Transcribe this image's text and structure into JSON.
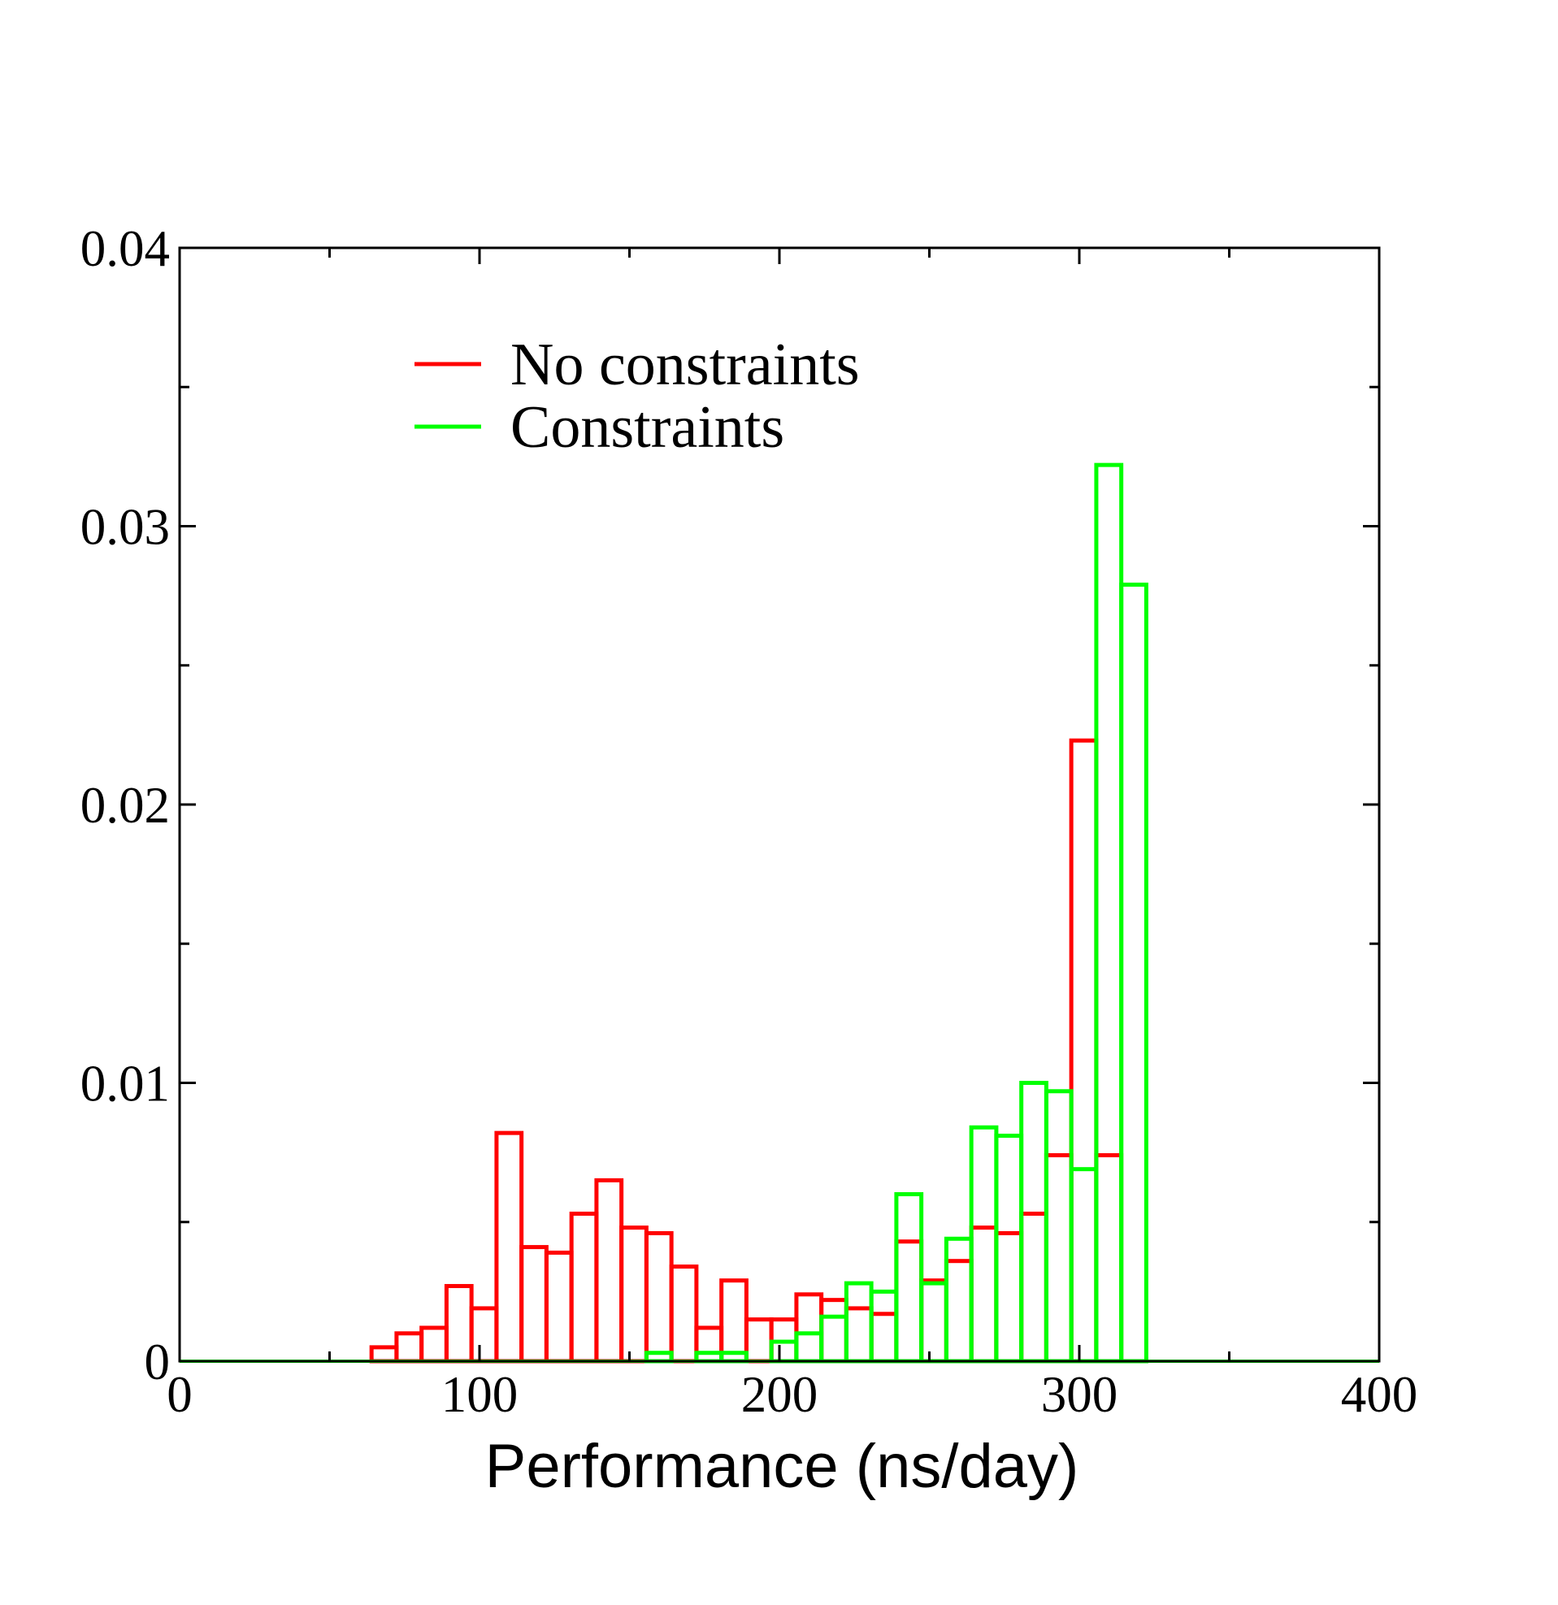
{
  "chart_data": {
    "type": "bar",
    "title": "",
    "xlabel": "Performance (ns/day)",
    "ylabel": "",
    "xlim": [
      0,
      400
    ],
    "ylim": [
      0,
      0.04
    ],
    "x_ticks": [
      "0",
      "100",
      "200",
      "300",
      "400"
    ],
    "y_ticks": [
      "0",
      "0.01",
      "0.02",
      "0.03",
      "0.04"
    ],
    "grid": false,
    "legend_placement": "top-left",
    "bin_width": 8.33,
    "series": [
      {
        "name": "No constraints",
        "color": "#ff0000",
        "bins": [
          {
            "x": 64,
            "y": 0.0005
          },
          {
            "x": 72.33,
            "y": 0.001
          },
          {
            "x": 80.67,
            "y": 0.0012
          },
          {
            "x": 89,
            "y": 0.0027
          },
          {
            "x": 97.33,
            "y": 0.0019
          },
          {
            "x": 105.67,
            "y": 0.0082
          },
          {
            "x": 114,
            "y": 0.0041
          },
          {
            "x": 122.33,
            "y": 0.0039
          },
          {
            "x": 130.67,
            "y": 0.0053
          },
          {
            "x": 139,
            "y": 0.0065
          },
          {
            "x": 147.33,
            "y": 0.0048
          },
          {
            "x": 155.67,
            "y": 0.0046
          },
          {
            "x": 164,
            "y": 0.0034
          },
          {
            "x": 172.33,
            "y": 0.0012
          },
          {
            "x": 180.67,
            "y": 0.0029
          },
          {
            "x": 189,
            "y": 0.0015
          },
          {
            "x": 197.33,
            "y": 0.0015
          },
          {
            "x": 205.67,
            "y": 0.0024
          },
          {
            "x": 214,
            "y": 0.0022
          },
          {
            "x": 222.33,
            "y": 0.0019
          },
          {
            "x": 230.67,
            "y": 0.0017
          },
          {
            "x": 239,
            "y": 0.0043
          },
          {
            "x": 247.33,
            "y": 0.0029
          },
          {
            "x": 255.67,
            "y": 0.0036
          },
          {
            "x": 264,
            "y": 0.0048
          },
          {
            "x": 272.33,
            "y": 0.0046
          },
          {
            "x": 280.67,
            "y": 0.0053
          },
          {
            "x": 289,
            "y": 0.0074
          },
          {
            "x": 297.33,
            "y": 0.0223
          },
          {
            "x": 305.67,
            "y": 0.0074
          }
        ]
      },
      {
        "name": "Constraints",
        "color": "#00ff00",
        "bins": [
          {
            "x": 155.67,
            "y": 0.0003
          },
          {
            "x": 164,
            "y": 0.0
          },
          {
            "x": 172.33,
            "y": 0.0003
          },
          {
            "x": 180.67,
            "y": 0.0003
          },
          {
            "x": 189,
            "y": 0.0
          },
          {
            "x": 197.33,
            "y": 0.0007
          },
          {
            "x": 205.67,
            "y": 0.001
          },
          {
            "x": 214,
            "y": 0.0016
          },
          {
            "x": 222.33,
            "y": 0.0028
          },
          {
            "x": 230.67,
            "y": 0.0025
          },
          {
            "x": 239,
            "y": 0.006
          },
          {
            "x": 247.33,
            "y": 0.0028
          },
          {
            "x": 255.67,
            "y": 0.0044
          },
          {
            "x": 264,
            "y": 0.0084
          },
          {
            "x": 272.33,
            "y": 0.0081
          },
          {
            "x": 280.67,
            "y": 0.01
          },
          {
            "x": 289,
            "y": 0.0097
          },
          {
            "x": 297.33,
            "y": 0.0069
          },
          {
            "x": 305.67,
            "y": 0.0322
          },
          {
            "x": 314,
            "y": 0.0279
          }
        ]
      }
    ]
  }
}
